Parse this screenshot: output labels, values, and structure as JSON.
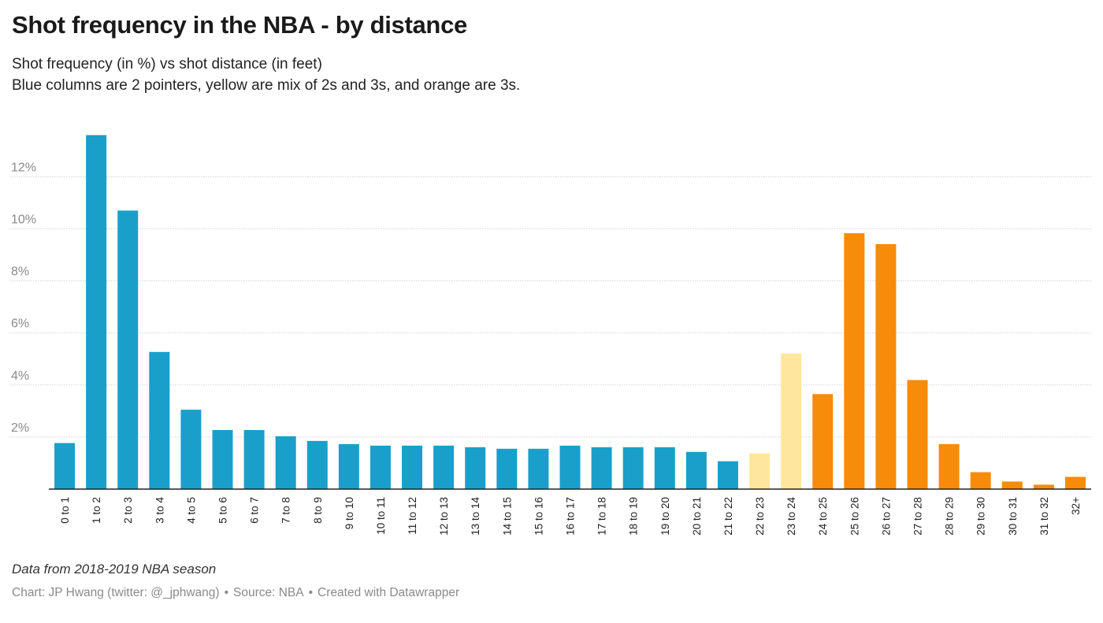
{
  "header": {
    "title": "Shot frequency in the NBA - by distance",
    "subtitle_line1": "Shot frequency (in %) vs shot distance (in feet)",
    "subtitle_line2": "Blue columns are 2 pointers, yellow are mix of 2s and 3s, and orange are 3s."
  },
  "footer": {
    "notes": "Data from 2018-2019 NBA season",
    "credit": "Chart: JP Hwang (twitter: @_jphwang)",
    "separator": "•",
    "source": "Source: NBA",
    "created_with": "Created with Datawrapper"
  },
  "colors": {
    "two_pointer": "#1a9fcb",
    "mix": "#ffe69e",
    "three_pointer": "#f78b0a",
    "gridline": "#d4d4d4",
    "baseline": "#222222",
    "tick_label": "#8a8a8a",
    "category_label": "#222222"
  },
  "chart_data": {
    "type": "bar",
    "title": "Shot frequency in the NBA - by distance",
    "xlabel": "",
    "ylabel": "",
    "ylim": [
      0,
      13.6
    ],
    "y_ticks": [
      2,
      4,
      6,
      8,
      10,
      12
    ],
    "y_tick_labels": [
      "2%",
      "4%",
      "6%",
      "8%",
      "10%",
      "12%"
    ],
    "grid": true,
    "categories": [
      "0 to 1",
      "1 to 2",
      "2 to 3",
      "3 to 4",
      "4 to 5",
      "5 to 6",
      "6 to 7",
      "7 to 8",
      "8 to 9",
      "9 to 10",
      "10 to 11",
      "11 to 12",
      "12 to 13",
      "13 to 14",
      "14 to 15",
      "15 to 16",
      "16 to 17",
      "17 to 18",
      "18 to 19",
      "19 to 20",
      "20 to 21",
      "21 to 22",
      "22 to 23",
      "23 to 24",
      "24 to 25",
      "25 to 26",
      "26 to 27",
      "27 to 28",
      "28 to 29",
      "29 to 30",
      "30 to 31",
      "31 to 32",
      "32+"
    ],
    "values": [
      1.77,
      13.6,
      10.7,
      5.27,
      3.05,
      2.27,
      2.27,
      2.03,
      1.85,
      1.73,
      1.67,
      1.67,
      1.67,
      1.61,
      1.55,
      1.55,
      1.67,
      1.61,
      1.61,
      1.61,
      1.43,
      1.07,
      1.37,
      5.21,
      3.65,
      9.83,
      9.41,
      4.19,
      1.73,
      0.65,
      0.29,
      0.17,
      0.47
    ],
    "shot_type": [
      "2",
      "2",
      "2",
      "2",
      "2",
      "2",
      "2",
      "2",
      "2",
      "2",
      "2",
      "2",
      "2",
      "2",
      "2",
      "2",
      "2",
      "2",
      "2",
      "2",
      "2",
      "2",
      "mix",
      "mix",
      "3",
      "3",
      "3",
      "3",
      "3",
      "3",
      "3",
      "3",
      "3"
    ]
  }
}
